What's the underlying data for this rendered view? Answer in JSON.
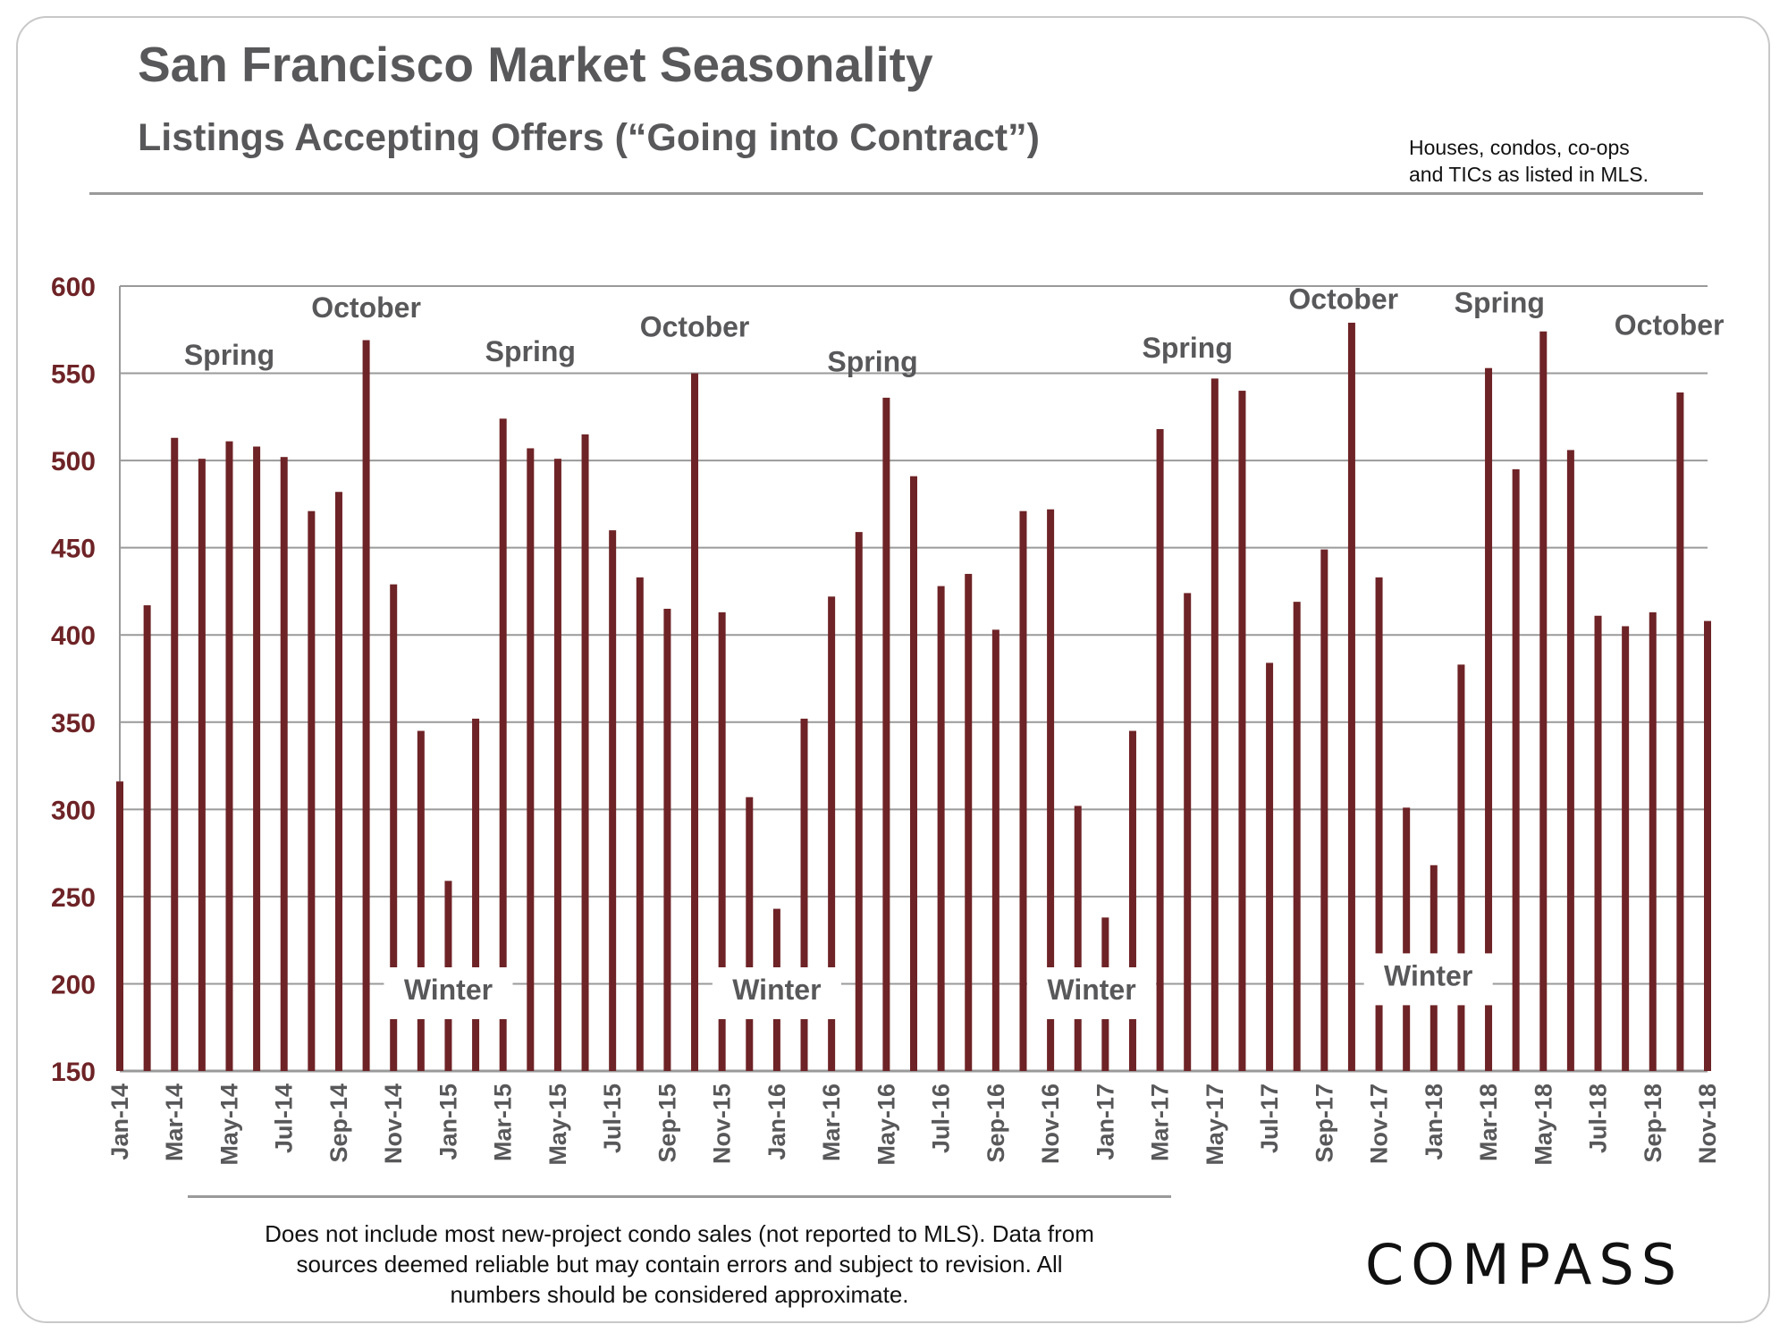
{
  "header": {
    "title": "San Francisco Market Seasonality",
    "subtitle": "Listings Accepting Offers (“Going into Contract”)",
    "note_line1": "Houses, condos, co-ops",
    "note_line2": "and TICs as listed in MLS."
  },
  "footer": {
    "footnote_line1": "Does not include most new-project condo sales (not reported to MLS). Data from",
    "footnote_line2": "sources deemed reliable but may contain errors and subject to revision.  All",
    "footnote_line3": "numbers should be considered approximate.",
    "logo": "COMPASS"
  },
  "colors": {
    "bar": "#6e2326",
    "y_tick": "#6e2326",
    "annotation": "#58585a",
    "grid": "#9a9a9a"
  },
  "chart_data": {
    "type": "bar",
    "title": "Listings Accepting Offers (“Going into Contract”)",
    "xlabel": "",
    "ylabel": "",
    "ylim": [
      150,
      600
    ],
    "yticks": [
      150,
      200,
      250,
      300,
      350,
      400,
      450,
      500,
      550,
      600
    ],
    "grid": true,
    "categories": [
      "Jan-14",
      "Feb-14",
      "Mar-14",
      "Apr-14",
      "May-14",
      "Jun-14",
      "Jul-14",
      "Aug-14",
      "Sep-14",
      "Oct-14",
      "Nov-14",
      "Dec-14",
      "Jan-15",
      "Feb-15",
      "Mar-15",
      "Apr-15",
      "May-15",
      "Jun-15",
      "Jul-15",
      "Aug-15",
      "Sep-15",
      "Oct-15",
      "Nov-15",
      "Dec-15",
      "Jan-16",
      "Feb-16",
      "Mar-16",
      "Apr-16",
      "May-16",
      "Jun-16",
      "Jul-16",
      "Aug-16",
      "Sep-16",
      "Oct-16",
      "Nov-16",
      "Dec-16",
      "Jan-17",
      "Feb-17",
      "Mar-17",
      "Apr-17",
      "May-17",
      "Jun-17",
      "Jul-17",
      "Aug-17",
      "Sep-17",
      "Oct-17",
      "Nov-17",
      "Dec-17",
      "Jan-18",
      "Feb-18",
      "Mar-18",
      "Apr-18",
      "May-18",
      "Jun-18",
      "Jul-18",
      "Aug-18",
      "Sep-18",
      "Oct-18",
      "Nov-18"
    ],
    "tick_labels": [
      "Jan-14",
      "Mar-14",
      "May-14",
      "Jul-14",
      "Sep-14",
      "Nov-14",
      "Jan-15",
      "Mar-15",
      "May-15",
      "Jul-15",
      "Sep-15",
      "Nov-15",
      "Jan-16",
      "Mar-16",
      "May-16",
      "Jul-16",
      "Sep-16",
      "Nov-16",
      "Jan-17",
      "Mar-17",
      "May-17",
      "Jul-17",
      "Sep-17",
      "Nov-17",
      "Jan-18",
      "Mar-18",
      "May-18",
      "Jul-18",
      "Sep-18",
      "Nov-18"
    ],
    "series": [
      {
        "name": "Listings Accepting Offers",
        "values": [
          316,
          417,
          513,
          501,
          511,
          508,
          502,
          471,
          482,
          569,
          429,
          345,
          259,
          352,
          524,
          507,
          501,
          515,
          460,
          433,
          415,
          550,
          413,
          307,
          243,
          352,
          422,
          459,
          536,
          491,
          428,
          435,
          403,
          471,
          472,
          302,
          238,
          345,
          518,
          424,
          547,
          540,
          384,
          419,
          449,
          579,
          433,
          301,
          268,
          383,
          553,
          495,
          574,
          506,
          411,
          405,
          413,
          539,
          408
        ]
      }
    ],
    "annotations": [
      {
        "text": "Spring",
        "month_index": 4,
        "value": 555,
        "boxed": false
      },
      {
        "text": "October",
        "month_index": 9,
        "value": 582,
        "boxed": false
      },
      {
        "text": "Winter",
        "month_index": 12,
        "value": 191,
        "boxed": true
      },
      {
        "text": "Spring",
        "month_index": 15,
        "value": 557,
        "boxed": false
      },
      {
        "text": "October",
        "month_index": 21,
        "value": 571,
        "boxed": false
      },
      {
        "text": "Spring",
        "month_index": 27.5,
        "value": 551,
        "boxed": false
      },
      {
        "text": "Winter",
        "month_index": 24,
        "value": 191,
        "boxed": true
      },
      {
        "text": "Winter",
        "month_index": 35.5,
        "value": 191,
        "boxed": true
      },
      {
        "text": "Spring",
        "month_index": 39,
        "value": 559,
        "boxed": false
      },
      {
        "text": "October",
        "month_index": 44.7,
        "value": 587,
        "boxed": false
      },
      {
        "text": "Winter",
        "month_index": 47.8,
        "value": 199,
        "boxed": true
      },
      {
        "text": "Spring",
        "month_index": 50.4,
        "value": 585,
        "boxed": false
      },
      {
        "text": "October",
        "month_index": 56.6,
        "value": 572,
        "boxed": false
      }
    ]
  }
}
